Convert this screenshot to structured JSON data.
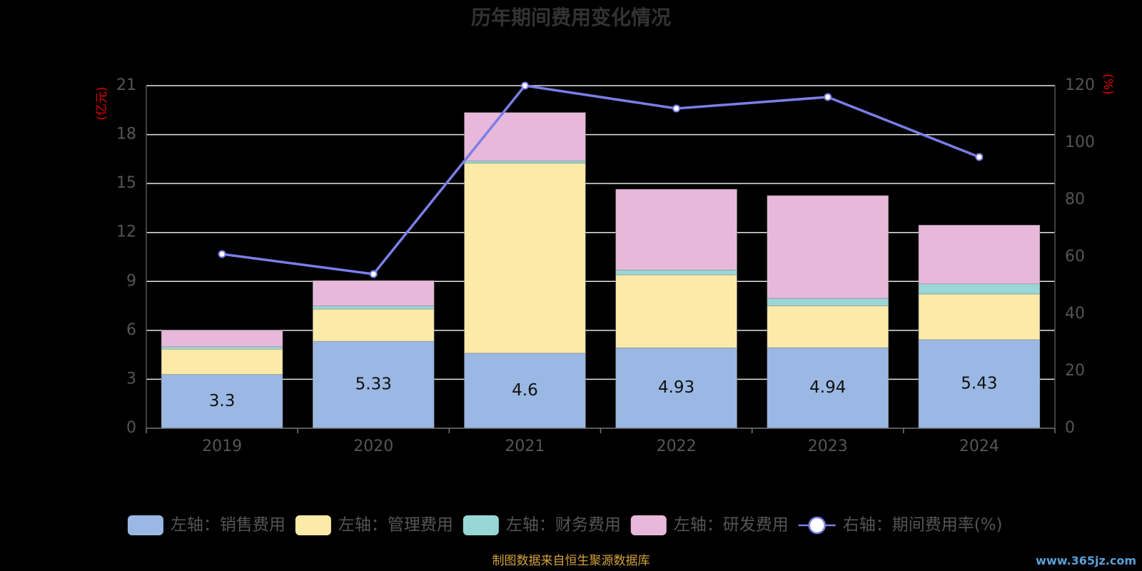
{
  "chart_data": {
    "type": "bar",
    "stacked": true,
    "title": "历年期间费用变化情况",
    "categories": [
      "2019",
      "2020",
      "2021",
      "2022",
      "2023",
      "2024"
    ],
    "y_left": {
      "unit": "(亿元)",
      "ylim": [
        0,
        21
      ],
      "ticks": [
        0,
        3,
        6,
        9,
        12,
        15,
        18,
        21
      ]
    },
    "y_right": {
      "unit": "(%)",
      "ylim": [
        0,
        120
      ],
      "ticks": [
        0,
        20,
        40,
        60,
        80,
        100,
        120
      ]
    },
    "grid": true,
    "legend_position": "bottom",
    "series": [
      {
        "name": "左轴：销售费用",
        "type": "bar",
        "color": "#9ab8e3",
        "values": [
          3.3,
          5.33,
          4.6,
          4.93,
          4.94,
          5.43
        ],
        "show_labels": true
      },
      {
        "name": "左轴：管理费用",
        "type": "bar",
        "color": "#fbeaa8",
        "values": [
          1.55,
          1.97,
          11.65,
          4.47,
          2.57,
          2.8
        ]
      },
      {
        "name": "左轴：财务费用",
        "type": "bar",
        "color": "#99d6d6",
        "values": [
          0.15,
          0.2,
          0.15,
          0.3,
          0.45,
          0.62
        ]
      },
      {
        "name": "左轴：研发费用",
        "type": "bar",
        "color": "#e8b8da",
        "values": [
          1.0,
          1.55,
          2.95,
          4.95,
          6.3,
          3.6
        ]
      },
      {
        "name": "右轴：期间费用率(%)",
        "type": "line",
        "axis": "right",
        "color": "#7b7ee8",
        "values": [
          61,
          54,
          120,
          112,
          116,
          95
        ]
      }
    ]
  },
  "source_note": "制图数据来自恒生聚源数据库",
  "watermark": "www.365jz.com"
}
